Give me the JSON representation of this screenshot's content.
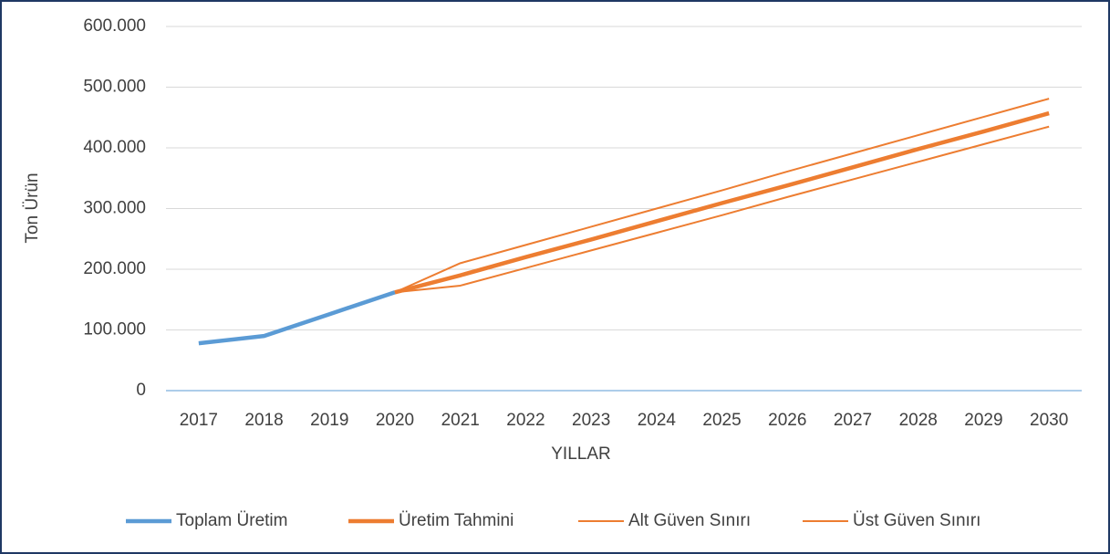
{
  "chart_data": {
    "type": "line",
    "x_label": "YILLAR",
    "y_label": "Ton Ürün",
    "categories": [
      "2017",
      "2018",
      "2019",
      "2020",
      "2021",
      "2022",
      "2023",
      "2024",
      "2025",
      "2026",
      "2027",
      "2028",
      "2029",
      "2030"
    ],
    "series": [
      {
        "name": "Toplam Üretim",
        "color": "#5b9bd5",
        "linewidth": 4.5,
        "values": [
          78000,
          90000,
          126000,
          162000,
          null,
          null,
          null,
          null,
          null,
          null,
          null,
          null,
          null,
          null
        ]
      },
      {
        "name": "Üretim Tahmini",
        "color": "#ed7d31",
        "linewidth": 4.5,
        "values": [
          null,
          null,
          null,
          162000,
          190000,
          220000,
          249000,
          279000,
          309000,
          338000,
          368000,
          398000,
          427000,
          457000
        ]
      },
      {
        "name": "Alt Güven Sınırı",
        "color": "#ed7d31",
        "linewidth": 2,
        "values": [
          null,
          null,
          null,
          162000,
          173000,
          202000,
          231000,
          260000,
          289000,
          319000,
          348000,
          377000,
          406000,
          435000
        ]
      },
      {
        "name": "Üst Güven Sınırı",
        "color": "#ed7d31",
        "linewidth": 2,
        "values": [
          null,
          null,
          null,
          162000,
          210000,
          240000,
          270000,
          300000,
          330000,
          361000,
          391000,
          421000,
          451000,
          481000
        ]
      }
    ],
    "ylim": [
      0,
      600000
    ],
    "yticks": [
      0,
      {
        "value": 100000,
        "label": "100.000"
      },
      {
        "value": 200000,
        "label": "200.000"
      },
      {
        "value": 300000,
        "label": "300.000"
      },
      {
        "value": 400000,
        "label": "400.000"
      },
      {
        "value": 500000,
        "label": "500.000"
      },
      {
        "value": 600000,
        "label": "600.000"
      }
    ],
    "grid": true,
    "legend": "bottom"
  }
}
